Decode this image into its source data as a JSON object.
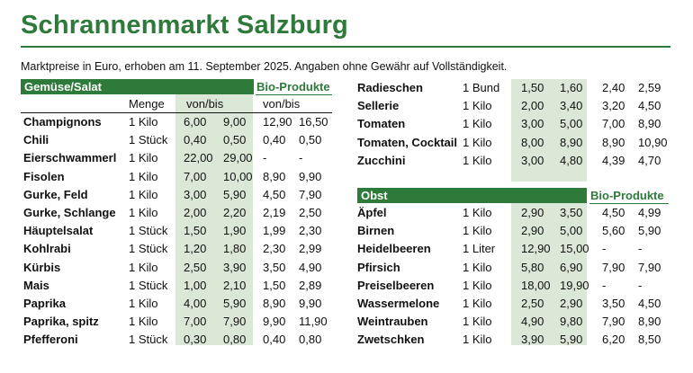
{
  "title": "Schrannenmarkt Salzburg",
  "subtitle": "Marktpreise in Euro, erhoben am 11. September 2025. Angaben ohne Gewähr auf Vollständigkeit.",
  "colors": {
    "accent": "#2d7a3a",
    "shade": "#dbe8d8"
  },
  "left": {
    "header": "Gemüse/Salat",
    "bio_label": "Bio-Produkte",
    "col_menge": "Menge",
    "col_vonbis": "von/bis",
    "col_bio_vonbis": "von/bis",
    "rows": [
      {
        "name": "Champignons",
        "qty": "1 Kilo",
        "von": "6,00",
        "bis": "9,00",
        "bio_von": "12,90",
        "bio_bis": "16,50"
      },
      {
        "name": "Chili",
        "qty": "1 Stück",
        "von": "0,40",
        "bis": "0,50",
        "bio_von": "0,40",
        "bio_bis": "0,50"
      },
      {
        "name": "Eierschwammerl",
        "qty": "1 Kilo",
        "von": "22,00",
        "bis": "29,00",
        "bio_von": "-",
        "bio_bis": "-"
      },
      {
        "name": "Fisolen",
        "qty": "1 Kilo",
        "von": "7,00",
        "bis": "10,00",
        "bio_von": "8,90",
        "bio_bis": "9,90"
      },
      {
        "name": "Gurke, Feld",
        "qty": "1 Kilo",
        "von": "3,00",
        "bis": "5,90",
        "bio_von": "4,50",
        "bio_bis": "7,90"
      },
      {
        "name": "Gurke, Schlange",
        "qty": "1 Kilo",
        "von": "2,00",
        "bis": "2,20",
        "bio_von": "2,19",
        "bio_bis": "2,50"
      },
      {
        "name": "Häuptelsalat",
        "qty": "1 Stück",
        "von": "1,50",
        "bis": "1,90",
        "bio_von": "1,99",
        "bio_bis": "2,30"
      },
      {
        "name": "Kohlrabi",
        "qty": "1 Stück",
        "von": "1,20",
        "bis": "1,80",
        "bio_von": "2,30",
        "bio_bis": "2,99"
      },
      {
        "name": "Kürbis",
        "qty": "1 Kilo",
        "von": "2,50",
        "bis": "3,90",
        "bio_von": "3,50",
        "bio_bis": "4,90"
      },
      {
        "name": "Mais",
        "qty": "1 Stück",
        "von": "1,00",
        "bis": "2,10",
        "bio_von": "1,50",
        "bio_bis": "2,89"
      },
      {
        "name": "Paprika",
        "qty": "1 Kilo",
        "von": "4,00",
        "bis": "5,90",
        "bio_von": "8,90",
        "bio_bis": "9,90"
      },
      {
        "name": "Paprika, spitz",
        "qty": "1 Kilo",
        "von": "7,00",
        "bis": "7,90",
        "bio_von": "9,90",
        "bio_bis": "11,90"
      },
      {
        "name": "Pfefferoni",
        "qty": "1 Stück",
        "von": "0,30",
        "bis": "0,80",
        "bio_von": "0,40",
        "bio_bis": "0,80"
      }
    ]
  },
  "right_top": {
    "rows": [
      {
        "name": "Radieschen",
        "qty": "1 Bund",
        "von": "1,50",
        "bis": "1,60",
        "bio_von": "2,40",
        "bio_bis": "2,59"
      },
      {
        "name": "Sellerie",
        "qty": "1 Kilo",
        "von": "2,00",
        "bis": "3,40",
        "bio_von": "3,20",
        "bio_bis": "4,50"
      },
      {
        "name": "Tomaten",
        "qty": "1 Kilo",
        "von": "3,00",
        "bis": "5,00",
        "bio_von": "7,00",
        "bio_bis": "8,90"
      },
      {
        "name": "Tomaten, Cocktail",
        "qty": "1 Kilo",
        "von": "8,00",
        "bis": "8,90",
        "bio_von": "8,90",
        "bio_bis": "10,90"
      },
      {
        "name": "Zucchini",
        "qty": "1 Kilo",
        "von": "3,00",
        "bis": "4,80",
        "bio_von": "4,39",
        "bio_bis": "4,70"
      }
    ]
  },
  "right_obst": {
    "header": "Obst",
    "bio_label": "Bio-Produkte",
    "rows": [
      {
        "name": "Äpfel",
        "qty": "1 Kilo",
        "von": "2,90",
        "bis": "3,50",
        "bio_von": "4,50",
        "bio_bis": "4,99"
      },
      {
        "name": "Birnen",
        "qty": "1 Kilo",
        "von": "2,90",
        "bis": "5,00",
        "bio_von": "5,60",
        "bio_bis": "5,90"
      },
      {
        "name": "Heidelbeeren",
        "qty": "1 Liter",
        "von": "12,90",
        "bis": "15,00",
        "bio_von": "-",
        "bio_bis": "-"
      },
      {
        "name": "Pfirsich",
        "qty": "1 Kilo",
        "von": "5,80",
        "bis": "6,90",
        "bio_von": "7,90",
        "bio_bis": "7,90"
      },
      {
        "name": "Preiselbeeren",
        "qty": "1 Kilo",
        "von": "18,00",
        "bis": "19,90",
        "bio_von": "-",
        "bio_bis": "-"
      },
      {
        "name": "Wassermelone",
        "qty": "1 Kilo",
        "von": "2,50",
        "bis": "2,90",
        "bio_von": "3,50",
        "bio_bis": "4,50"
      },
      {
        "name": "Weintrauben",
        "qty": "1 Kilo",
        "von": "4,90",
        "bis": "9,80",
        "bio_von": "7,90",
        "bio_bis": "8,90"
      },
      {
        "name": "Zwetschken",
        "qty": "1 Kilo",
        "von": "3,90",
        "bis": "5,90",
        "bio_von": "6,20",
        "bio_bis": "8,50"
      }
    ]
  }
}
